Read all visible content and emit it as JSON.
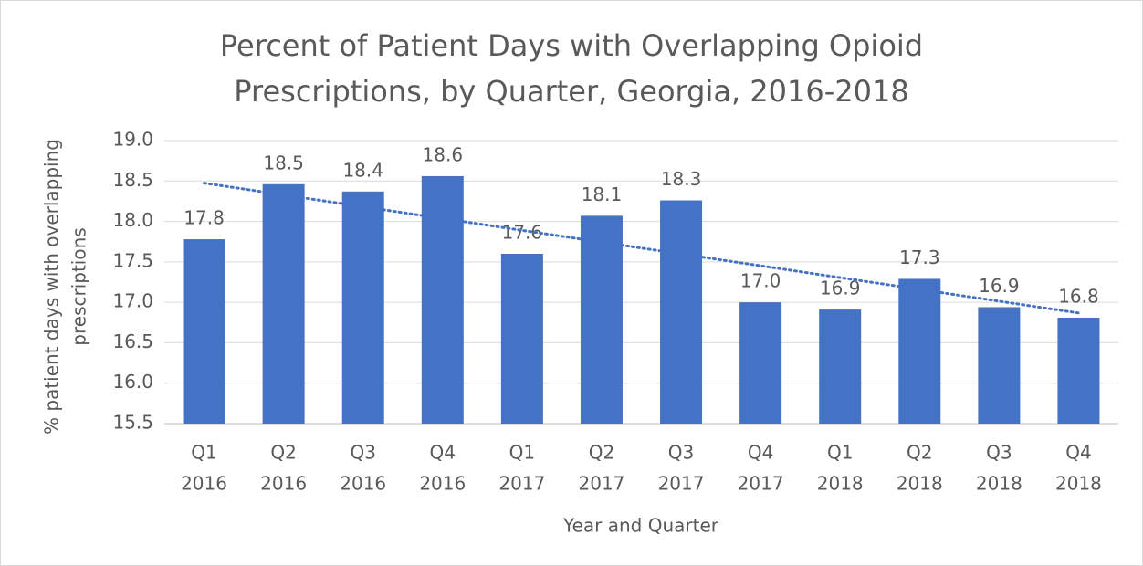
{
  "chart_data": {
    "type": "bar",
    "title": [
      "Percent of Patient Days with Overlapping Opioid",
      "Prescriptions, by Quarter, Georgia, 2016-2018"
    ],
    "xlabel": "Year and Quarter",
    "ylabel": [
      "% patient days with overlapping",
      "prescriptions"
    ],
    "categories": [
      [
        "Q1",
        "2016"
      ],
      [
        "Q2",
        "2016"
      ],
      [
        "Q3",
        "2016"
      ],
      [
        "Q4",
        "2016"
      ],
      [
        "Q1",
        "2017"
      ],
      [
        "Q2",
        "2017"
      ],
      [
        "Q3",
        "2017"
      ],
      [
        "Q4",
        "2017"
      ],
      [
        "Q1",
        "2018"
      ],
      [
        "Q2",
        "2018"
      ],
      [
        "Q3",
        "2018"
      ],
      [
        "Q4",
        "2018"
      ]
    ],
    "values": [
      17.78,
      18.46,
      18.37,
      18.56,
      17.6,
      18.07,
      18.26,
      17.0,
      16.91,
      17.29,
      16.94,
      16.81
    ],
    "value_labels": [
      "17.8",
      "18.5",
      "18.4",
      "18.6",
      "17.6",
      "18.1",
      "18.3",
      "17.0",
      "16.9",
      "17.3",
      "16.9",
      "16.8"
    ],
    "color": "#4472c4",
    "trendline": "linear",
    "ylim": [
      15.5,
      19.0
    ],
    "yticks": [
      {
        "value": 15.5,
        "label": "15.5"
      },
      {
        "value": 16,
        "label": "16.0"
      },
      {
        "value": 16.5,
        "label": "16.5"
      },
      {
        "value": 17,
        "label": "17.0"
      },
      {
        "value": 17.5,
        "label": "17.5"
      },
      {
        "value": 18,
        "label": "18.0"
      },
      {
        "value": 18.5,
        "label": "18.5"
      },
      {
        "value": 19,
        "label": "19.0"
      }
    ],
    "grid": true
  }
}
